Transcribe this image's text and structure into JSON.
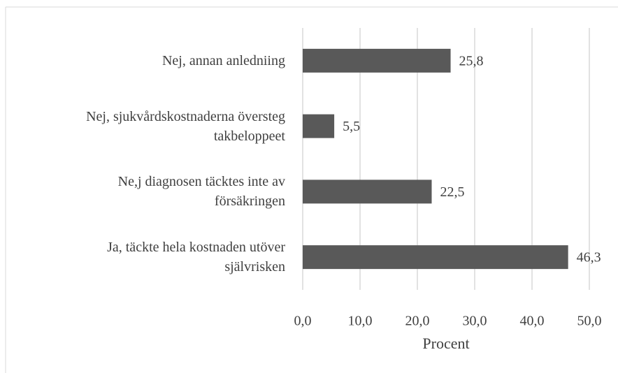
{
  "chart_data": {
    "type": "hbar",
    "x_label": "Procent",
    "categories": [
      "Nej, annan anledniing",
      "Nej, sjukvårdskostnaderna översteg takbeloppeet",
      "Ne,j diagnosen täcktes inte av försäkringen",
      "Ja, täckte hela kostnaden utöver självrisken"
    ],
    "values": [
      25.8,
      5.5,
      22.5,
      46.3
    ],
    "value_labels": [
      "25,8",
      "5,5",
      "22,5",
      "46,3"
    ],
    "color": "#595959",
    "xlim": [
      0,
      50
    ],
    "xticks": [
      {
        "value": 0,
        "label": "0,0"
      },
      {
        "value": 10,
        "label": "10,0"
      },
      {
        "value": 20,
        "label": "20,0"
      },
      {
        "value": 30,
        "label": "30,0"
      },
      {
        "value": 40,
        "label": "40,0"
      },
      {
        "value": 50,
        "label": "50,0"
      }
    ],
    "grid": true
  }
}
